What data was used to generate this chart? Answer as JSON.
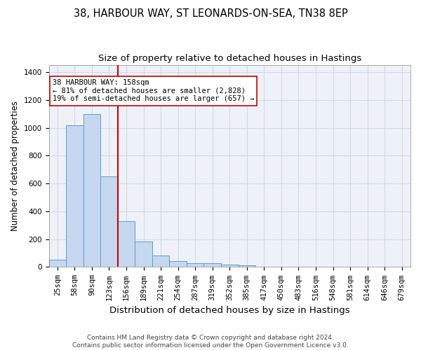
{
  "title_line1": "38, HARBOUR WAY, ST LEONARDS-ON-SEA, TN38 8EP",
  "title_line2": "Size of property relative to detached houses in Hastings",
  "xlabel": "Distribution of detached houses by size in Hastings",
  "ylabel": "Number of detached properties",
  "footer_line1": "Contains HM Land Registry data © Crown copyright and database right 2024.",
  "footer_line2": "Contains public sector information licensed under the Open Government Licence v3.0.",
  "categories": [
    "25sqm",
    "58sqm",
    "90sqm",
    "123sqm",
    "156sqm",
    "189sqm",
    "221sqm",
    "254sqm",
    "287sqm",
    "319sqm",
    "352sqm",
    "385sqm",
    "417sqm",
    "450sqm",
    "483sqm",
    "516sqm",
    "548sqm",
    "581sqm",
    "614sqm",
    "646sqm",
    "679sqm"
  ],
  "values": [
    55,
    1020,
    1100,
    650,
    330,
    185,
    85,
    40,
    25,
    25,
    15,
    10,
    0,
    0,
    0,
    0,
    0,
    0,
    0,
    0,
    0
  ],
  "bar_color": "#c5d8f0",
  "bar_edge_color": "#5b9bd5",
  "ylim": [
    0,
    1450
  ],
  "yticks": [
    0,
    200,
    400,
    600,
    800,
    1000,
    1200,
    1400
  ],
  "property_line_bin": 4,
  "annotation_text_line1": "38 HARBOUR WAY: 158sqm",
  "annotation_text_line2": "← 81% of detached houses are smaller (2,828)",
  "annotation_text_line3": "19% of semi-detached houses are larger (657) →",
  "grid_color": "#d0d8e8",
  "bg_color": "#eef2f8",
  "red_line_color": "#cc0000",
  "title_fontsize": 10.5,
  "subtitle_fontsize": 9.5,
  "tick_fontsize": 7.5,
  "ylabel_fontsize": 8.5,
  "xlabel_fontsize": 9.5,
  "footer_fontsize": 6.5
}
